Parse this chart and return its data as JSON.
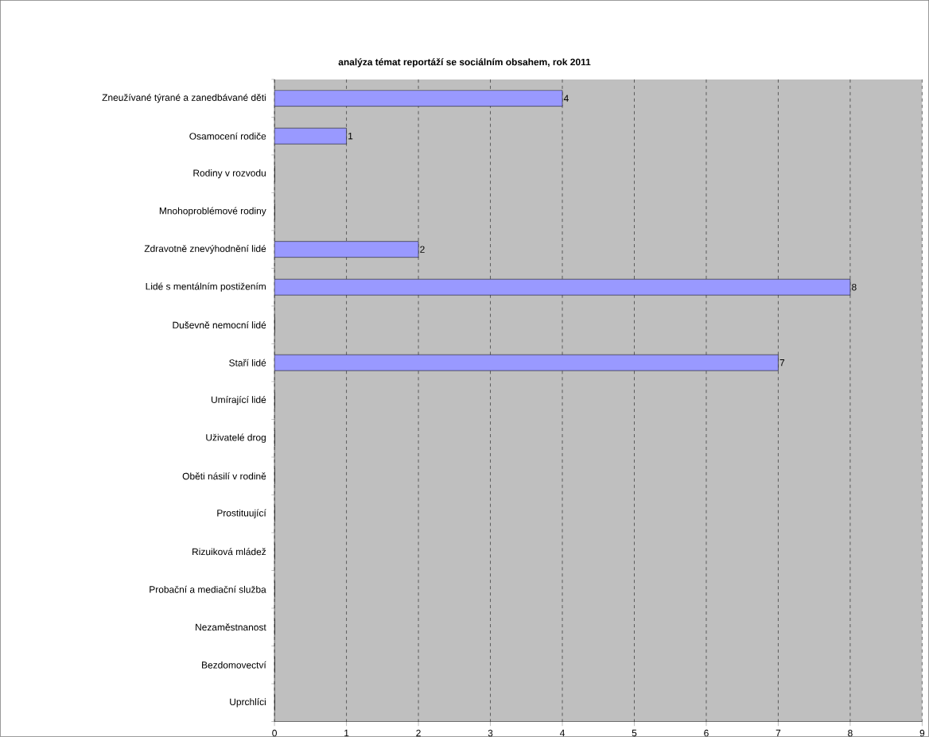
{
  "chart_data": {
    "type": "bar",
    "orientation": "horizontal",
    "title": "analýza témat reportáží se sociálním obsahem, rok 2011",
    "categories": [
      "Zneužívané týrané a zanedbávané děti",
      "Osamocení rodiče",
      "Rodiny v rozvodu",
      "Mnohoproblémové rodiny",
      "Zdravotně znevýhodnění lidé",
      "Lidé s mentálním postižením",
      "Duševně nemocní lidé",
      "Staří lidé",
      "Umírající lidé",
      "Uživatelé drog",
      "Oběti násilí v rodině",
      "Prostituující",
      "Rizuiková mládež",
      "Probační a mediační služba",
      "Nezaměstnanost",
      "Bezdomovectví",
      "Uprchlíci"
    ],
    "values": [
      4,
      1,
      0,
      0,
      2,
      8,
      0,
      7,
      0,
      0,
      0,
      0,
      0,
      0,
      0,
      0,
      0
    ],
    "value_labels": [
      "4",
      "1",
      null,
      null,
      "2",
      "8",
      null,
      "7",
      null,
      null,
      null,
      null,
      null,
      null,
      null,
      null,
      null
    ],
    "color": "#9999ff",
    "xlim": [
      0,
      9
    ],
    "xticks": [
      0,
      1,
      2,
      3,
      4,
      5,
      6,
      7,
      8,
      9
    ],
    "grid": "x"
  }
}
